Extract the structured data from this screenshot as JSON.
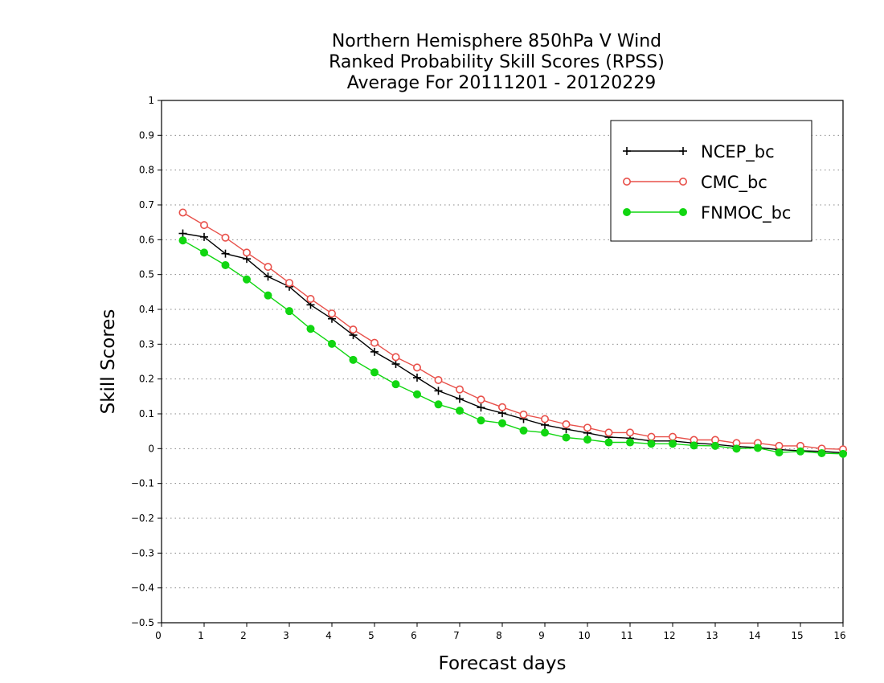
{
  "chart_data": {
    "type": "line",
    "title_lines": [
      "Northern Hemisphere 850hPa V Wind",
      "Ranked Probability Skill Scores (RPSS)",
      "Average For 20111201 - 20120229"
    ],
    "xlabel": "Forecast days",
    "ylabel": "Skill Scores",
    "xlim": [
      0,
      16
    ],
    "ylim": [
      -0.5,
      1
    ],
    "xticks": [
      "0",
      "1",
      "2",
      "3",
      "4",
      "5",
      "6",
      "7",
      "8",
      "9",
      "10",
      "11",
      "12",
      "13",
      "14",
      "15",
      "16"
    ],
    "yticks": [
      "−0.5",
      "−0.4",
      "−0.3",
      "−0.2",
      "−0.1",
      "0",
      "0.1",
      "0.2",
      "0.3",
      "0.4",
      "0.5",
      "0.6",
      "0.7",
      "0.8",
      "0.9",
      "1"
    ],
    "grid": true,
    "legend_position": "top-right",
    "x": [
      0.5,
      1,
      1.5,
      2,
      2.5,
      3,
      3.5,
      4,
      4.5,
      5,
      5.5,
      6,
      6.5,
      7,
      7.5,
      8,
      8.5,
      9,
      9.5,
      10,
      10.5,
      11,
      11.5,
      12,
      12.5,
      13,
      13.5,
      14,
      14.5,
      15,
      15.5,
      16
    ],
    "series": [
      {
        "name": "NCEP_bc",
        "color": "#000000",
        "marker": "plus",
        "values": [
          0.618,
          0.608,
          0.56,
          0.545,
          0.494,
          0.465,
          0.413,
          0.373,
          0.326,
          0.278,
          0.243,
          0.204,
          0.166,
          0.143,
          0.118,
          0.102,
          0.085,
          0.068,
          0.056,
          0.045,
          0.033,
          0.03,
          0.022,
          0.022,
          0.016,
          0.012,
          0.006,
          0.003,
          -0.003,
          -0.006,
          -0.008,
          -0.012
        ]
      },
      {
        "name": "CMC_bc",
        "color": "#e8504a",
        "marker": "open-circle",
        "values": [
          0.678,
          0.642,
          0.606,
          0.563,
          0.522,
          0.476,
          0.43,
          0.388,
          0.342,
          0.304,
          0.263,
          0.233,
          0.197,
          0.17,
          0.141,
          0.119,
          0.098,
          0.085,
          0.07,
          0.06,
          0.046,
          0.046,
          0.034,
          0.034,
          0.025,
          0.025,
          0.016,
          0.016,
          0.008,
          0.008,
          0.0,
          -0.002
        ]
      },
      {
        "name": "FNMOC_bc",
        "color": "#11d611",
        "marker": "filled-circle",
        "values": [
          0.598,
          0.563,
          0.527,
          0.486,
          0.44,
          0.395,
          0.344,
          0.301,
          0.255,
          0.219,
          0.185,
          0.156,
          0.127,
          0.109,
          0.081,
          0.073,
          0.052,
          0.046,
          0.032,
          0.026,
          0.018,
          0.018,
          0.014,
          0.014,
          0.009,
          0.008,
          0.0,
          0.002,
          -0.011,
          -0.008,
          -0.013,
          -0.015
        ]
      }
    ]
  }
}
